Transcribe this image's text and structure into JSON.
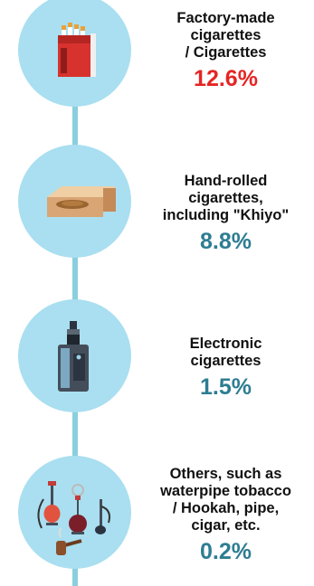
{
  "colors": {
    "line": "#8bcedf",
    "circle": "#a9dff0",
    "highlight": "#e52523",
    "accent": "#2e7d92"
  },
  "items": [
    {
      "label": "Factory-made\ncigarettes\n/ Cigarettes",
      "value": "12.6%",
      "value_color": "#e52523",
      "icon": "cigarette-pack-icon"
    },
    {
      "label": "Hand-rolled\ncigarettes,\nincluding \"Khiyo\"",
      "value": "8.8%",
      "value_color": "#2e7d92",
      "icon": "tobacco-box-icon"
    },
    {
      "label": "Electronic\ncigarettes",
      "value": "1.5%",
      "value_color": "#2e7d92",
      "icon": "e-cigarette-icon"
    },
    {
      "label": "Others, such as\nwaterpipe tobacco\n/ Hookah, pipe,\ncigar, etc.",
      "value": "0.2%",
      "value_color": "#2e7d92",
      "icon": "hookah-pipe-icon"
    }
  ]
}
